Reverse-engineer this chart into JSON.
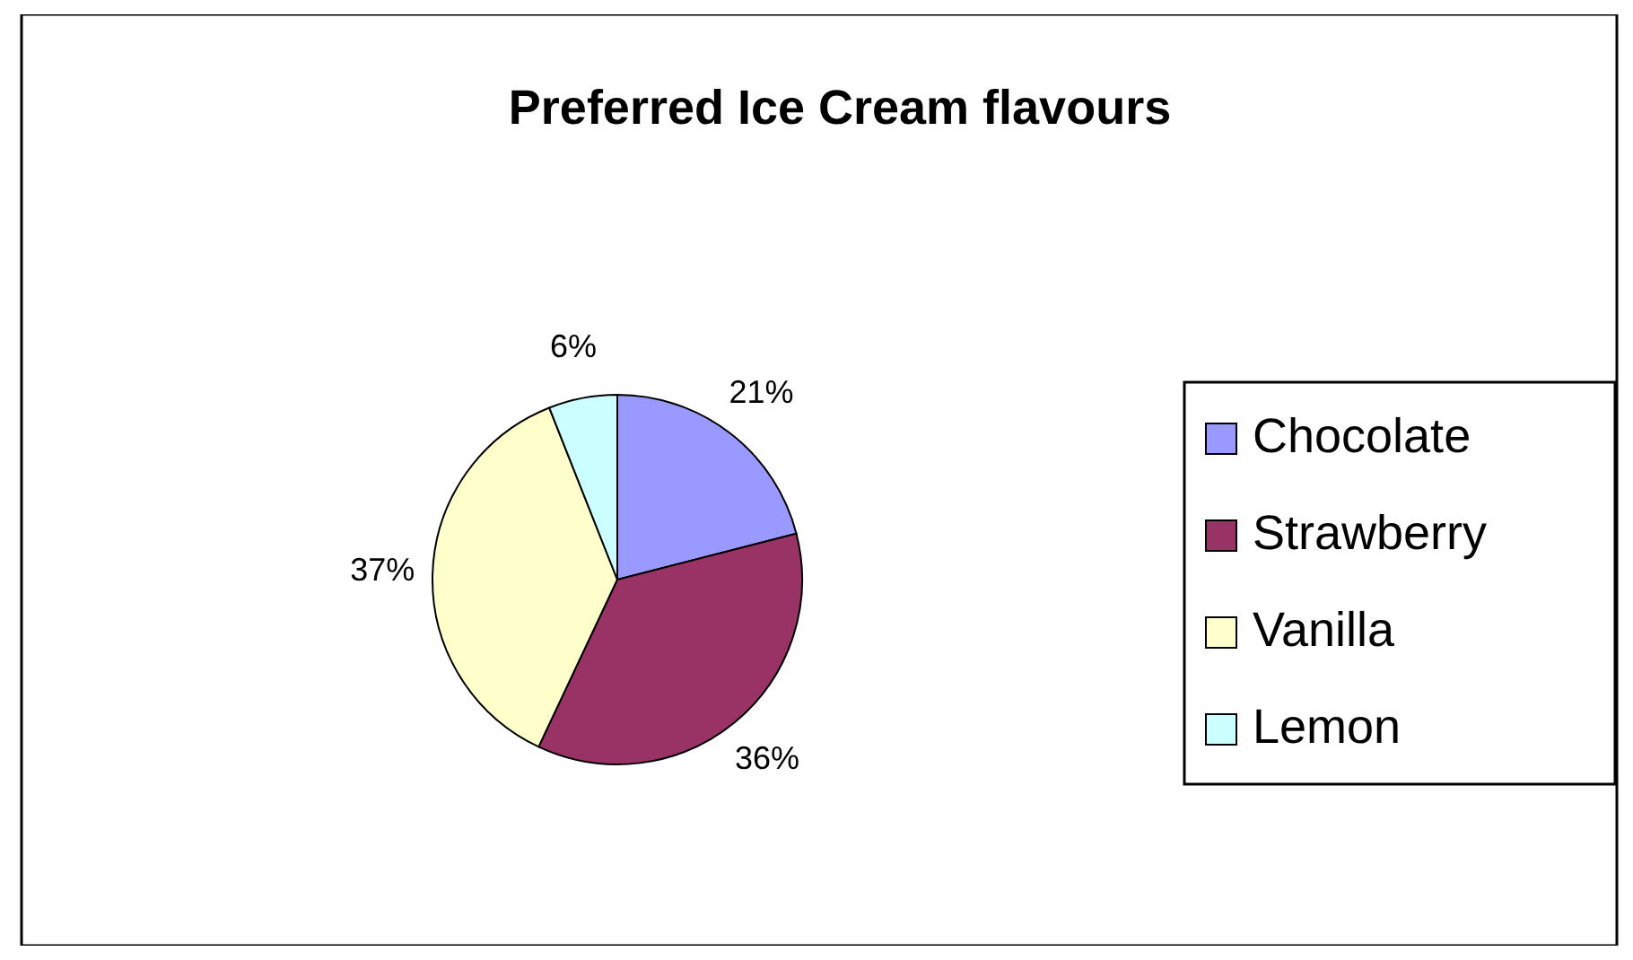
{
  "chart_data": {
    "type": "pie",
    "title": "Preferred Ice Cream flavours",
    "categories": [
      "Chocolate",
      "Strawberry",
      "Vanilla",
      "Lemon"
    ],
    "values": [
      21,
      36,
      37,
      6
    ],
    "colors": [
      "#9999ff",
      "#993366",
      "#ffffcc",
      "#ccffff"
    ],
    "value_labels": [
      "21%",
      "36%",
      "37%",
      "6%"
    ],
    "legend": "right"
  }
}
